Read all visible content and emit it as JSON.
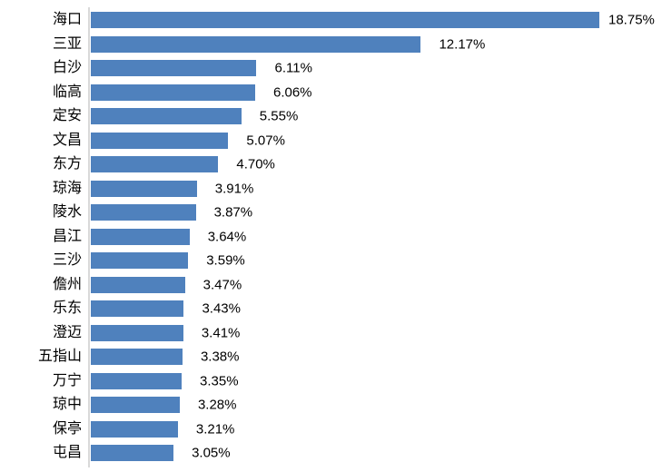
{
  "chart_data": {
    "type": "bar",
    "orientation": "horizontal",
    "title": "",
    "xlabel": "",
    "ylabel": "",
    "grid": false,
    "legend_position": "none",
    "bar_color": "#4F81BD",
    "axis_line_color": "#D9D9D9",
    "text_color": "#000000",
    "xlim": [
      0,
      19
    ],
    "categories": [
      "海口",
      "三亚",
      "白沙",
      "临高",
      "定安",
      "文昌",
      "东方",
      "琼海",
      "陵水",
      "昌江",
      "三沙",
      "儋州",
      "乐东",
      "澄迈",
      "五指山",
      "万宁",
      "琼中",
      "保亭",
      "屯昌"
    ],
    "values": [
      18.75,
      12.17,
      6.11,
      6.06,
      5.55,
      5.07,
      4.7,
      3.91,
      3.87,
      3.64,
      3.59,
      3.47,
      3.43,
      3.41,
      3.38,
      3.35,
      3.28,
      3.21,
      3.05
    ],
    "value_labels": [
      "18.75%",
      "12.17%",
      "6.11%",
      "6.06%",
      "5.55%",
      "5.07%",
      "4.70%",
      "3.91%",
      "3.87%",
      "3.64%",
      "3.59%",
      "3.47%",
      "3.43%",
      "3.41%",
      "3.38%",
      "3.35%",
      "3.28%",
      "3.21%",
      "3.05%"
    ]
  }
}
